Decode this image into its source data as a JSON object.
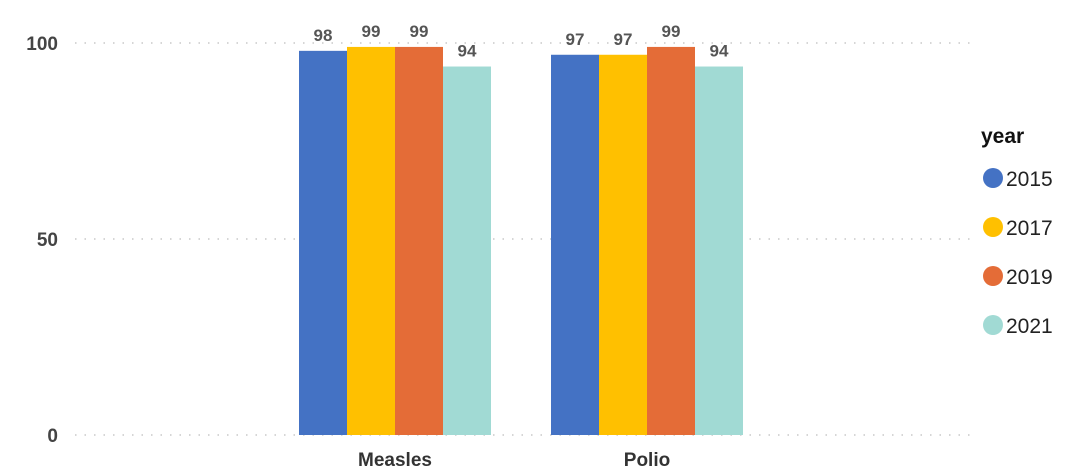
{
  "chart_data": {
    "type": "bar",
    "categories": [
      "Measles",
      "Polio"
    ],
    "series": [
      {
        "name": "2015",
        "color": "#4472C4",
        "values": [
          98,
          97
        ]
      },
      {
        "name": "2017",
        "color": "#FFC000",
        "values": [
          99,
          97
        ]
      },
      {
        "name": "2019",
        "color": "#E46C37",
        "values": [
          99,
          99
        ]
      },
      {
        "name": "2021",
        "color": "#A1DAD4",
        "values": [
          94,
          94
        ]
      }
    ],
    "legend": {
      "title": "year",
      "position": "right"
    },
    "y_ticks": [
      "0",
      "50",
      "100"
    ],
    "ylim": [
      0,
      100
    ],
    "grid": true,
    "data_labels": true
  }
}
